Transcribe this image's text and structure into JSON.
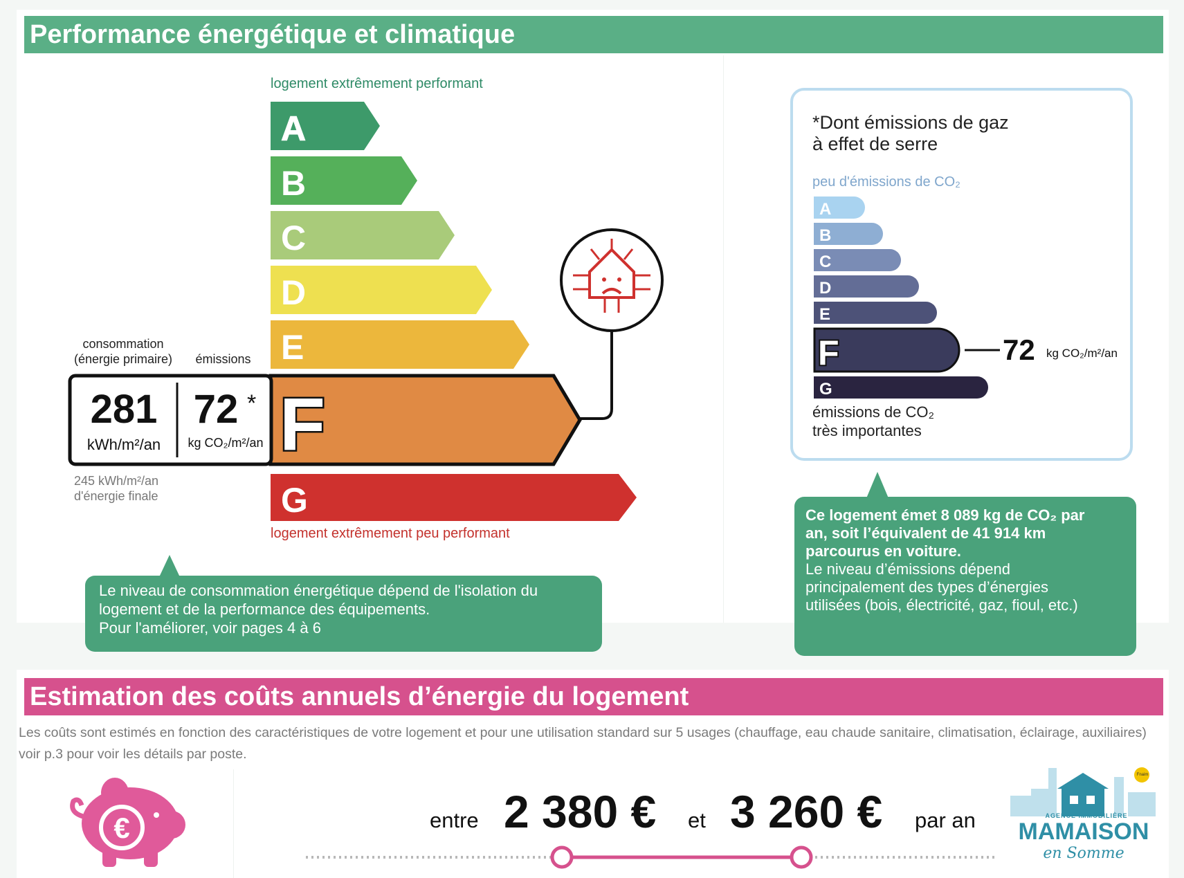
{
  "energy_section": {
    "title": "Performance énergétique et climatique",
    "top_caption": "logement extrêmement performant",
    "bottom_caption": "logement extrêmement peu performant",
    "classes": [
      {
        "letter": "A",
        "color": "#3d9a6a"
      },
      {
        "letter": "B",
        "color": "#55b05a"
      },
      {
        "letter": "C",
        "color": "#a9cb7a"
      },
      {
        "letter": "D",
        "color": "#eee050"
      },
      {
        "letter": "E",
        "color": "#ecb73c"
      },
      {
        "letter": "F",
        "color": "#e08a44"
      },
      {
        "letter": "G",
        "color": "#cf312e"
      }
    ],
    "current_class": "F",
    "consumption_label_line1": "consommation",
    "consumption_label_line2": "(énergie primaire)",
    "emissions_label": "émissions",
    "consumption_value": "281",
    "consumption_unit": "kWh/m²/an",
    "emissions_value": "72",
    "emissions_asterisk": "*",
    "emissions_unit": "kg CO₂/m²/an",
    "final_energy_line1": "245 kWh/m²/an",
    "final_energy_line2": "d'énergie finale",
    "callout_line1": "Le niveau de consommation énergétique dépend de l'isolation du",
    "callout_line2": "logement et de la performance des équipements.",
    "callout_line3": "Pour l'améliorer, voir pages 4 à 6"
  },
  "ghg_section": {
    "heading_line1": "*Dont émissions de gaz",
    "heading_line2": "à effet de serre",
    "top_caption": "peu d'émissions de CO₂",
    "classes": [
      {
        "letter": "A",
        "color": "#a9d3f0"
      },
      {
        "letter": "B",
        "color": "#8eaed3"
      },
      {
        "letter": "C",
        "color": "#7a8cb5"
      },
      {
        "letter": "D",
        "color": "#636d96"
      },
      {
        "letter": "E",
        "color": "#4d5278"
      },
      {
        "letter": "F",
        "color": "#3a3b5c"
      },
      {
        "letter": "G",
        "color": "#2a2440"
      }
    ],
    "current_class": "F",
    "value": "72",
    "unit": "kg CO₂/m²/an",
    "bottom_caption_line1": "émissions de CO₂",
    "bottom_caption_line2": "très importantes",
    "callout_bold_line1": "Ce logement émet 8 089 kg de CO₂ par",
    "callout_bold_line2": "an, soit l’équivalent de 41 914 km",
    "callout_bold_line3": "parcourus en voiture.",
    "callout_line4": "Le niveau d’émissions dépend",
    "callout_line5": "principalement des types d’énergies",
    "callout_line6": "utilisées (bois, électricité, gaz, fioul, etc.)"
  },
  "cost_section": {
    "title": "Estimation des coûts annuels d’énergie du logement",
    "description": "Les coûts sont estimés en fonction des caractéristiques de votre logement et pour une utilisation standard sur 5 usages (chauffage, eau chaude sanitaire, climatisation, éclairage, auxiliaires) voir p.3 pour voir les détails par poste.",
    "entre": "entre",
    "min_cost": "2 380 €",
    "et": "et",
    "max_cost": "3 260 €",
    "par_an": "par an"
  },
  "logo": {
    "line1": "AGENCE IMMOBILIÈRE",
    "line2": "MAMAISON",
    "line3": "en Somme",
    "badge": "Fnaim"
  }
}
